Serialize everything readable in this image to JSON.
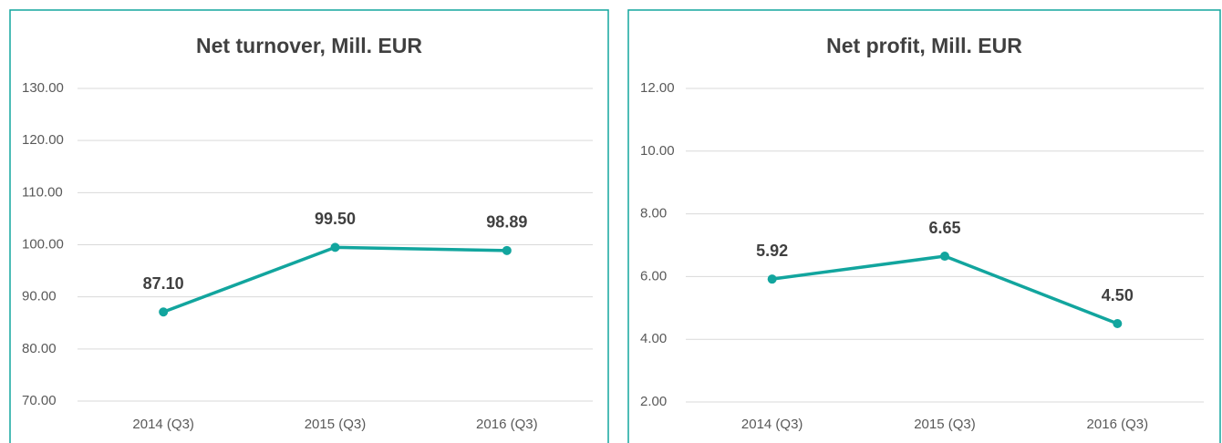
{
  "chart_data": [
    {
      "type": "line",
      "title": "Net turnover, Mill. EUR",
      "categories": [
        "2014 (Q3)",
        "2015 (Q3)",
        "2016 (Q3)"
      ],
      "values": [
        87.1,
        99.5,
        98.89
      ],
      "value_labels": [
        "87.10",
        "99.50",
        "98.89"
      ],
      "color": "#12a59e",
      "ylim": [
        70,
        130
      ],
      "yticks": [
        {
          "value": 70,
          "label": "70.00"
        },
        {
          "value": 80,
          "label": "80.00"
        },
        {
          "value": 90,
          "label": "90.00"
        },
        {
          "value": 100,
          "label": "100.00"
        },
        {
          "value": 110,
          "label": "110.00"
        },
        {
          "value": 120,
          "label": "120.00"
        },
        {
          "value": 130,
          "label": "130.00"
        }
      ],
      "grid": true
    },
    {
      "type": "line",
      "title": "Net profit, Mill. EUR",
      "categories": [
        "2014 (Q3)",
        "2015 (Q3)",
        "2016 (Q3)"
      ],
      "values": [
        5.92,
        6.65,
        4.5
      ],
      "value_labels": [
        "5.92",
        "6.65",
        "4.50"
      ],
      "color": "#12a59e",
      "ylim": [
        2,
        12
      ],
      "yticks": [
        {
          "value": 2,
          "label": "2.00"
        },
        {
          "value": 4,
          "label": "4.00"
        },
        {
          "value": 6,
          "label": "6.00"
        },
        {
          "value": 8,
          "label": "8.00"
        },
        {
          "value": 10,
          "label": "10.00"
        },
        {
          "value": 12,
          "label": "12.00"
        }
      ],
      "grid": true
    }
  ]
}
